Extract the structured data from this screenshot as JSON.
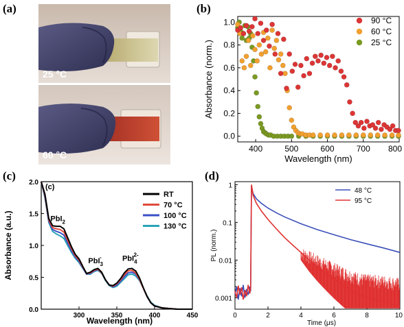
{
  "panels": {
    "a": {
      "label": "(a)",
      "photos": [
        {
          "caption": "25 °C"
        },
        {
          "caption": "60 °C"
        }
      ]
    },
    "b": {
      "label": "(b)"
    },
    "c": {
      "label": "(c)",
      "inner_label": "(c)"
    },
    "d": {
      "label": "(d)"
    }
  },
  "colors": {
    "red": "#dd3535",
    "orange": "#f2a030",
    "green": "#7a9a22",
    "rt": "#000000",
    "c70": "#e04a3a",
    "c100": "#3a4fc4",
    "c130": "#2aa3b8",
    "d48": "#3a4fb8",
    "d95": "#e03030"
  },
  "chart_data": [
    {
      "panel": "b",
      "type": "scatter",
      "xlabel": "Wavelength (nm)",
      "ylabel": "Absorbance (norm.)",
      "xlim": [
        350,
        800
      ],
      "ylim": [
        -0.05,
        1.05
      ],
      "xticks": [
        "400",
        "500",
        "600",
        "700",
        "800"
      ],
      "yticks": [
        "0.0",
        "0.2",
        "0.4",
        "0.6",
        "0.8",
        "1.0"
      ],
      "legend_position": "top-right",
      "series": [
        {
          "name": "90 °C",
          "color": "red",
          "x": [
            350,
            358,
            366,
            374,
            382,
            390,
            398,
            406,
            414,
            422,
            430,
            438,
            446,
            454,
            462,
            470,
            478,
            486,
            494,
            502,
            510,
            518,
            526,
            534,
            542,
            550,
            558,
            566,
            574,
            582,
            590,
            598,
            606,
            614,
            622,
            630,
            638,
            646,
            654,
            662,
            670,
            678,
            686,
            694,
            702,
            710,
            718,
            726,
            734,
            742,
            750,
            758,
            766,
            774,
            782,
            790,
            798
          ],
          "y": [
            0.93,
            0.95,
            0.9,
            0.97,
            0.92,
            0.96,
            1.03,
            0.9,
            0.99,
            0.84,
            0.93,
            0.79,
            0.98,
            0.72,
            0.9,
            0.55,
            0.85,
            0.42,
            0.72,
            0.57,
            0.63,
            0.43,
            0.62,
            0.53,
            0.68,
            0.55,
            0.64,
            0.7,
            0.66,
            0.71,
            0.64,
            0.69,
            0.62,
            0.7,
            0.6,
            0.66,
            0.57,
            0.52,
            0.45,
            0.3,
            0.2,
            0.12,
            0.09,
            0.12,
            0.07,
            0.13,
            0.09,
            0.1,
            0.07,
            0.12,
            0.06,
            0.1,
            0.08,
            0.06,
            0.09,
            0.05,
            0.05
          ]
        },
        {
          "name": "60 °C",
          "color": "orange",
          "x": [
            350,
            356,
            362,
            368,
            374,
            380,
            386,
            392,
            398,
            404,
            410,
            416,
            422,
            428,
            434,
            440,
            446,
            452,
            458,
            464,
            470,
            476,
            482,
            488,
            494,
            500,
            506,
            512,
            518,
            524,
            530,
            540,
            550,
            560,
            580,
            600,
            620,
            640,
            660,
            680,
            700,
            720,
            740,
            760,
            780,
            798
          ],
          "y": [
            0.98,
            0.9,
            0.66,
            0.6,
            0.7,
            0.84,
            0.62,
            0.88,
            0.76,
            0.66,
            0.8,
            0.72,
            0.91,
            0.74,
            0.86,
            0.6,
            0.93,
            0.77,
            0.84,
            0.67,
            0.72,
            0.62,
            0.55,
            0.4,
            0.25,
            0.14,
            0.08,
            0.05,
            0.03,
            0.02,
            0.02,
            0.01,
            0.01,
            0.01,
            0.01,
            0.01,
            0.01,
            0.01,
            0.01,
            0.01,
            0.01,
            0.01,
            0.01,
            0.01,
            0.01,
            0.01
          ]
        },
        {
          "name": "25 °C",
          "color": "green",
          "x": [
            350,
            354,
            358,
            362,
            366,
            370,
            374,
            378,
            382,
            386,
            390,
            394,
            398,
            402,
            406,
            410,
            414,
            418,
            422,
            426,
            430,
            436,
            442,
            450,
            460,
            470,
            480,
            490,
            500,
            520,
            540,
            560,
            580,
            600,
            620,
            640,
            660,
            680,
            700,
            720,
            740,
            760,
            780,
            798
          ],
          "y": [
            0.95,
            1.0,
            0.92,
            0.86,
            0.9,
            0.97,
            0.84,
            0.96,
            0.86,
            0.9,
            0.78,
            0.66,
            0.52,
            0.38,
            0.26,
            0.17,
            0.11,
            0.07,
            0.04,
            0.03,
            0.02,
            0.01,
            0.01,
            0.0,
            0.0,
            0.0,
            0.0,
            0.0,
            0.0,
            0.0,
            0.0,
            0.0,
            0.0,
            0.0,
            0.0,
            0.0,
            0.0,
            0.0,
            0.0,
            0.0,
            0.0,
            0.0,
            0.0,
            0.0
          ]
        }
      ]
    },
    {
      "panel": "c",
      "type": "line",
      "xlabel": "Wavelength (nm)",
      "ylabel": "Absorbance (a.u.)",
      "xlim": [
        250,
        450
      ],
      "ylim": [
        0,
        2.0
      ],
      "xticks": [
        "300",
        "350",
        "400",
        "450"
      ],
      "yticks": [
        "0.0",
        "0.5",
        "1.0",
        "1.5",
        "2.0"
      ],
      "legend_position": "top-right",
      "annotations": [
        {
          "base": "PbI",
          "sub": "2",
          "sup": "",
          "x": 272,
          "y": 1.38
        },
        {
          "base": "PbI",
          "sub": "3",
          "sup": "-",
          "x": 322,
          "y": 0.72
        },
        {
          "base": "PbI",
          "sub": "4",
          "sup": "2-",
          "x": 368,
          "y": 0.76
        }
      ],
      "x": [
        250,
        255,
        260,
        265,
        270,
        275,
        280,
        285,
        290,
        295,
        300,
        305,
        310,
        315,
        320,
        325,
        330,
        335,
        340,
        345,
        350,
        355,
        360,
        365,
        370,
        375,
        380,
        385,
        390,
        395,
        400,
        410,
        420,
        430,
        440,
        450
      ],
      "series": [
        {
          "name": "RT",
          "color": "rt",
          "y": [
            2.05,
            1.8,
            1.42,
            1.31,
            1.3,
            1.3,
            1.26,
            1.12,
            0.98,
            0.86,
            0.79,
            0.67,
            0.56,
            0.58,
            0.62,
            0.64,
            0.58,
            0.46,
            0.38,
            0.37,
            0.41,
            0.48,
            0.57,
            0.63,
            0.64,
            0.6,
            0.49,
            0.34,
            0.2,
            0.1,
            0.05,
            0.02,
            0.01,
            0.0,
            0.0,
            0.0
          ]
        },
        {
          "name": "70 °C",
          "color": "c70",
          "y": [
            2.05,
            1.78,
            1.4,
            1.28,
            1.26,
            1.25,
            1.21,
            1.08,
            0.95,
            0.84,
            0.77,
            0.66,
            0.56,
            0.57,
            0.61,
            0.63,
            0.57,
            0.46,
            0.38,
            0.36,
            0.4,
            0.46,
            0.54,
            0.6,
            0.61,
            0.57,
            0.47,
            0.33,
            0.2,
            0.1,
            0.05,
            0.02,
            0.01,
            0.0,
            0.0,
            0.0
          ]
        },
        {
          "name": "100 °C",
          "color": "c100",
          "y": [
            2.05,
            1.76,
            1.38,
            1.25,
            1.22,
            1.2,
            1.16,
            1.04,
            0.92,
            0.82,
            0.75,
            0.65,
            0.55,
            0.56,
            0.6,
            0.62,
            0.57,
            0.46,
            0.38,
            0.35,
            0.38,
            0.44,
            0.51,
            0.57,
            0.58,
            0.55,
            0.46,
            0.33,
            0.2,
            0.1,
            0.05,
            0.02,
            0.01,
            0.0,
            0.0,
            0.0
          ]
        },
        {
          "name": "130 °C",
          "color": "c130",
          "y": [
            2.05,
            1.74,
            1.36,
            1.22,
            1.18,
            1.15,
            1.11,
            1.0,
            0.89,
            0.8,
            0.73,
            0.64,
            0.55,
            0.55,
            0.59,
            0.61,
            0.56,
            0.45,
            0.37,
            0.34,
            0.36,
            0.42,
            0.48,
            0.54,
            0.55,
            0.52,
            0.45,
            0.33,
            0.21,
            0.11,
            0.06,
            0.02,
            0.01,
            0.0,
            0.0,
            0.0
          ]
        }
      ]
    },
    {
      "panel": "d",
      "type": "line",
      "xlabel": "Time (μs)",
      "ylabel": "PL (norm.)",
      "xlim": [
        0,
        10
      ],
      "ylim": [
        0.0005,
        1.2
      ],
      "yscale": "log",
      "xticks": [
        "0",
        "2",
        "4",
        "6",
        "8",
        "10"
      ],
      "yticks": [
        "0.001",
        "0.01",
        "0.1",
        "1"
      ],
      "legend_position": "top-right",
      "series": [
        {
          "name": "48 °C",
          "color": "d48",
          "x": [
            0.0,
            0.1,
            0.2,
            0.3,
            0.4,
            0.5,
            0.6,
            0.7,
            0.8,
            0.9,
            0.95,
            1.0,
            1.1,
            1.3,
            1.6,
            2.0,
            2.5,
            3.0,
            4.0,
            5.0,
            6.0,
            7.0,
            8.0,
            9.0,
            10.0
          ],
          "y": [
            0.0012,
            0.002,
            0.0009,
            0.0018,
            0.0011,
            0.0022,
            0.001,
            0.0017,
            0.0012,
            0.002,
            0.0015,
            0.9,
            0.58,
            0.42,
            0.32,
            0.24,
            0.18,
            0.14,
            0.092,
            0.064,
            0.047,
            0.035,
            0.027,
            0.021,
            0.016
          ]
        },
        {
          "name": "95 °C",
          "color": "d95",
          "x": [
            0.0,
            0.1,
            0.2,
            0.3,
            0.4,
            0.5,
            0.6,
            0.7,
            0.8,
            0.9,
            0.95,
            1.0,
            1.1,
            1.3,
            1.6,
            2.0,
            2.5,
            3.0,
            3.5,
            4.0,
            4.5,
            5.0,
            5.5,
            6.0,
            6.5,
            7.0,
            7.5,
            8.0,
            8.5,
            9.0,
            9.5,
            10.0
          ],
          "y": [
            0.0015,
            0.001,
            0.0021,
            0.0012,
            0.0019,
            0.0009,
            0.0016,
            0.0011,
            0.0022,
            0.0013,
            0.0018,
            1.0,
            0.52,
            0.32,
            0.2,
            0.12,
            0.068,
            0.04,
            0.025,
            0.016,
            0.01,
            0.0066,
            0.0045,
            0.0031,
            0.0022,
            0.0016,
            0.0012,
            0.001,
            0.0009,
            0.0008,
            0.0007,
            0.0006
          ]
        }
      ]
    }
  ]
}
